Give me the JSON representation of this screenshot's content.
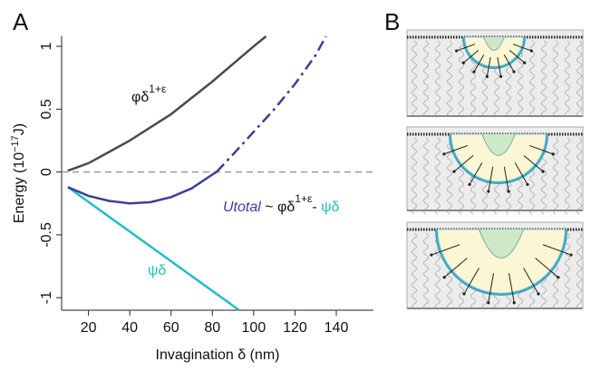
{
  "chart_data": {
    "type": "line",
    "panel_labels": [
      "A",
      "B"
    ],
    "xlabel": "Invagination δ (nm)",
    "ylabel": {
      "before": "Energy (10",
      "sup": "−17",
      "after": "J)"
    },
    "xlim": [
      7,
      158
    ],
    "xticks": [
      20,
      40,
      60,
      80,
      100,
      120,
      140
    ],
    "ylim": [
      -1.1,
      1.08
    ],
    "yticks": [
      -1,
      -0.5,
      0,
      0.5,
      1
    ],
    "hline": 0,
    "series": [
      {
        "color": "#4a4a4a",
        "dash": "solid",
        "x": [
          10,
          20,
          40,
          60,
          80,
          100,
          106
        ],
        "values": [
          0.01,
          0.07,
          0.25,
          0.46,
          0.72,
          1.0,
          1.08
        ]
      },
      {
        "color": "#1fbfc6",
        "dash": "solid",
        "x": [
          10,
          93
        ],
        "values": [
          -0.12,
          -1.1
        ]
      },
      {
        "color": "#3b3f96",
        "dash": "solid",
        "x": [
          10,
          20,
          30,
          40,
          50,
          60,
          70,
          80,
          82
        ],
        "values": [
          -0.12,
          -0.19,
          -0.23,
          -0.25,
          -0.24,
          -0.2,
          -0.13,
          -0.02,
          0
        ]
      },
      {
        "color": "#3b3f96",
        "dash": "dashdot",
        "x": [
          82,
          90,
          100,
          110,
          120,
          130,
          135
        ],
        "values": [
          0,
          0.14,
          0.32,
          0.5,
          0.7,
          0.93,
          1.08
        ]
      }
    ],
    "annotations": {
      "bending": {
        "text": "φδ",
        "sup": "1+ε"
      },
      "adhesion": {
        "text": "ψδ"
      },
      "total": {
        "name": "Utotal",
        "mid": " ~ φδ",
        "sup": "1+ε",
        "minus": "- ",
        "end": "ψδ"
      }
    }
  }
}
